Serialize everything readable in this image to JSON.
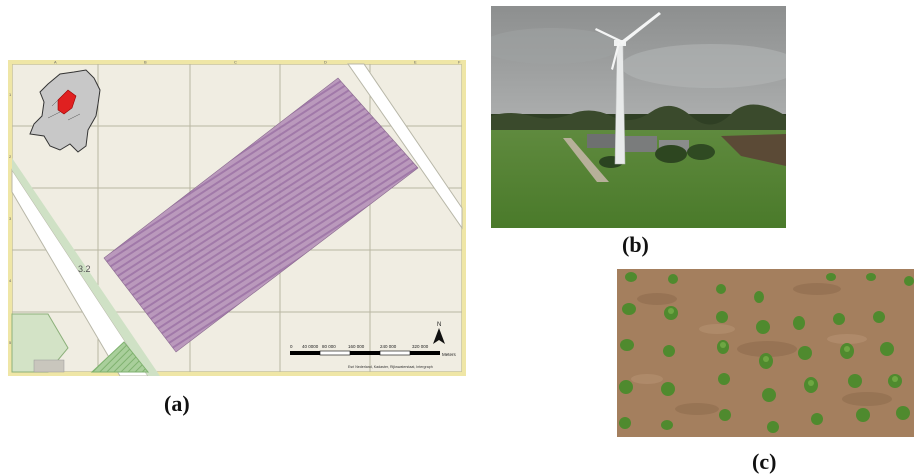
{
  "figure": {
    "panels": [
      {
        "caption": "(a)",
        "map": {
          "road_label": "3.2",
          "scale_bar": {
            "ticks": [
              "0",
              "40 0000",
              "80 000",
              "160 000",
              "240 000",
              "320 000"
            ],
            "unit": "Meters"
          },
          "north_arrow": "N",
          "credit": "Esri Nederland, Kadaster, Rijkswaterstaat, Intergraph",
          "grid_cols": [
            "A",
            "B",
            "C",
            "D",
            "E",
            "F"
          ],
          "grid_rows": [
            "1",
            "2",
            "3",
            "4",
            "5"
          ]
        }
      },
      {
        "caption": "(b)"
      },
      {
        "caption": "(c)"
      }
    ]
  }
}
